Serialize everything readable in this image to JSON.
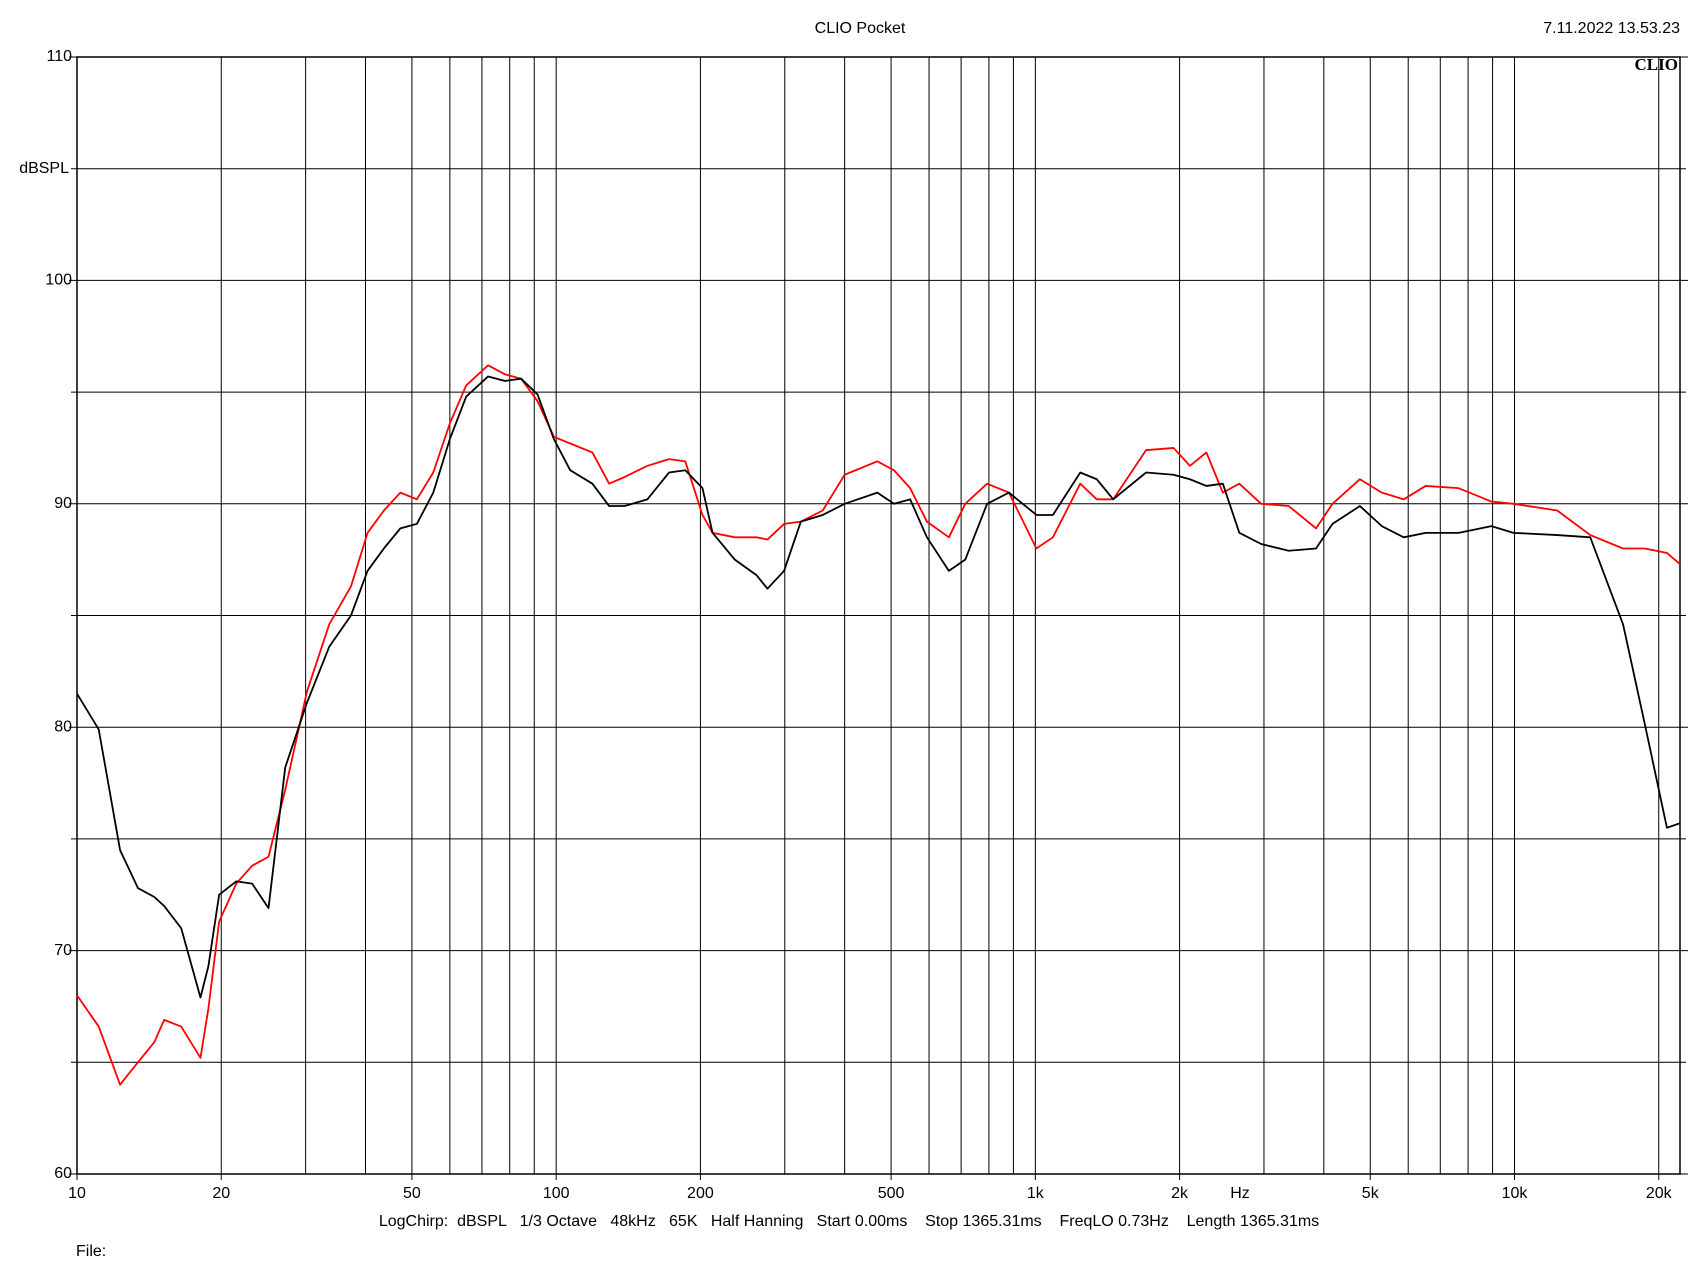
{
  "chart_data": {
    "type": "line",
    "title": "CLIO Pocket",
    "timestamp": "7.11.2022 13.53.23",
    "logo": "CLIO",
    "y_label": "dBSPL",
    "x_label": "Hz",
    "footer": "LogChirp:  dBSPL   1/3 Octave   48kHz   65K   Half Hanning   Start 0.00ms    Stop 1365.31ms    FreqLO 0.73Hz    Length 1365.31ms",
    "file_label": "File:",
    "xscale": "log",
    "grid": true,
    "xlim": [
      10,
      22150
    ],
    "ylim": [
      60,
      110
    ],
    "xticks": [
      10,
      20,
      50,
      100,
      200,
      500,
      {
        "value": 1000,
        "label": "1k"
      },
      {
        "value": 2000,
        "label": "2k"
      },
      {
        "value": 5000,
        "label": "5k"
      },
      {
        "value": 10000,
        "label": "10k"
      },
      {
        "value": 20000,
        "label": "20k"
      }
    ],
    "x_minor_ticks": [
      30,
      40,
      60,
      70,
      80,
      90,
      300,
      400,
      600,
      700,
      800,
      900,
      3000,
      4000,
      6000,
      7000,
      8000,
      9000
    ],
    "yticks": [
      60,
      70,
      80,
      90,
      100,
      110
    ],
    "y_minor_ticks": [
      65,
      75,
      85,
      95,
      105
    ],
    "x": [
      10,
      11.1,
      12.3,
      13.4,
      14.5,
      15.2,
      16.5,
      18.1,
      18.8,
      19.8,
      21.5,
      23.2,
      25.1,
      27.2,
      30.2,
      33.6,
      37.3,
      40.4,
      43.7,
      47.3,
      51.2,
      55.4,
      60,
      64.9,
      72.1,
      78.1,
      84.5,
      91.4,
      98.9,
      107,
      119,
      129,
      139,
      155,
      172,
      186,
      202,
      212,
      236,
      262,
      276,
      299,
      324,
      360,
      400,
      468,
      507,
      548,
      594,
      660,
      714,
      793,
      881,
      1005,
      1088,
      1241,
      1343,
      1454,
      1702,
      1943,
      2102,
      2275,
      2462,
      2665,
      2960,
      3379,
      3853,
      4170,
      4757,
      5286,
      5873,
      6525,
      7642,
      8951,
      9947,
      12280,
      14390,
      16850,
      18720,
      20800,
      22150
    ],
    "series": [
      {
        "name": "Black",
        "color": "#000000",
        "values": [
          81.5,
          79.9,
          74.5,
          72.8,
          72.4,
          72.0,
          71.0,
          67.9,
          69.3,
          72.5,
          73.1,
          73.0,
          71.9,
          78.2,
          81.1,
          83.6,
          85.0,
          87.0,
          88.0,
          88.9,
          89.1,
          90.5,
          92.9,
          94.8,
          95.7,
          95.5,
          95.6,
          94.9,
          92.9,
          91.5,
          90.9,
          89.9,
          89.9,
          90.2,
          91.4,
          91.5,
          90.7,
          88.7,
          87.5,
          86.8,
          86.2,
          87.0,
          89.2,
          89.5,
          90.0,
          90.5,
          90.0,
          90.2,
          88.5,
          87.0,
          87.5,
          90.0,
          90.5,
          89.5,
          89.5,
          91.4,
          91.1,
          90.2,
          91.4,
          91.3,
          91.1,
          90.8,
          90.9,
          88.7,
          88.2,
          87.9,
          88.0,
          89.1,
          89.9,
          89.0,
          88.5,
          88.7,
          88.7,
          89.0,
          88.7,
          88.6,
          88.5,
          84.6,
          80.1,
          75.5,
          75.7
        ]
      },
      {
        "name": "Red",
        "color": "#ff0000",
        "values": [
          68.0,
          66.6,
          64.0,
          65.0,
          65.9,
          66.9,
          66.6,
          65.2,
          67.4,
          71.3,
          73.0,
          73.8,
          74.2,
          77.2,
          81.6,
          84.6,
          86.3,
          88.7,
          89.7,
          90.5,
          90.2,
          91.4,
          93.6,
          95.3,
          96.2,
          95.8,
          95.6,
          94.6,
          93.0,
          92.7,
          92.3,
          90.9,
          91.2,
          91.7,
          92.0,
          91.9,
          89.5,
          88.7,
          88.5,
          88.5,
          88.4,
          89.1,
          89.2,
          89.7,
          91.3,
          91.9,
          91.5,
          90.7,
          89.2,
          88.5,
          90.0,
          90.9,
          90.5,
          88.0,
          88.5,
          90.9,
          90.2,
          90.2,
          92.4,
          92.5,
          91.7,
          92.3,
          90.5,
          90.9,
          90.0,
          89.9,
          88.9,
          90.0,
          91.1,
          90.5,
          90.2,
          90.8,
          90.7,
          90.1,
          90.0,
          89.7,
          88.6,
          88.0,
          88.0,
          87.8,
          87.3
        ]
      }
    ]
  }
}
